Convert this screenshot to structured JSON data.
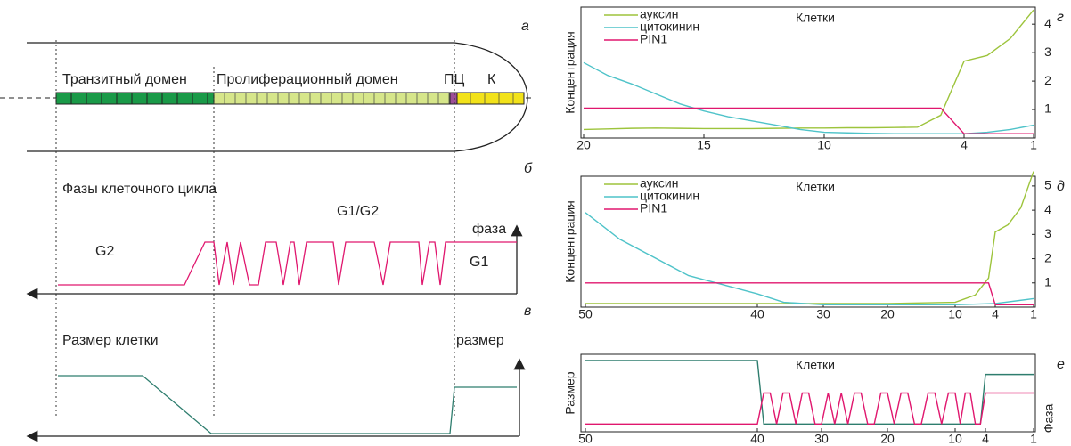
{
  "diagram": {
    "panel_a": "а",
    "transit": "Транзитный домен",
    "prolif": "Пролиферационный домен",
    "pc": "ПЦ",
    "k": "К",
    "panel_b": "б",
    "phases": "Фазы клеточного цикла",
    "g1g2": "G1/G2",
    "phase_axis": "фаза",
    "g2": "G2",
    "g1": "G1",
    "panel_v": "в",
    "cell_size": "Размер клетки",
    "size_axis": "размер"
  },
  "chart_data": [
    {
      "type": "line",
      "panel_label": "г",
      "title": "Клетки",
      "y_label": "Концентрация",
      "xlim": [
        20,
        1
      ],
      "xticks": [
        20,
        15,
        10,
        4,
        1
      ],
      "ylim": [
        0,
        4.6
      ],
      "yticks": [
        1,
        2,
        3,
        4
      ],
      "series": [
        {
          "name": "ауксин",
          "color": "#9dc43c",
          "x": [
            20,
            19,
            18,
            17,
            16,
            15,
            14,
            13,
            12,
            11,
            10,
            9,
            8,
            7,
            6,
            5,
            4,
            3,
            2,
            1
          ],
          "values": [
            0.3,
            0.32,
            0.34,
            0.35,
            0.34,
            0.33,
            0.33,
            0.33,
            0.34,
            0.35,
            0.35,
            0.36,
            0.36,
            0.37,
            0.38,
            0.8,
            2.7,
            2.9,
            3.5,
            4.5
          ]
        },
        {
          "name": "цитокинин",
          "color": "#4fc3c9",
          "x": [
            20,
            19,
            18,
            17,
            16,
            15,
            14,
            13,
            12,
            11,
            10,
            9,
            8,
            7,
            6,
            5,
            4,
            3,
            2,
            1
          ],
          "values": [
            2.65,
            2.2,
            1.9,
            1.55,
            1.2,
            0.95,
            0.75,
            0.6,
            0.45,
            0.3,
            0.2,
            0.18,
            0.16,
            0.15,
            0.15,
            0.15,
            0.15,
            0.2,
            0.3,
            0.45
          ]
        },
        {
          "name": "PIN1",
          "color": "#e0176e",
          "x": [
            20,
            5,
            4,
            1
          ],
          "values": [
            1.05,
            1.05,
            0.15,
            0.15
          ]
        }
      ]
    },
    {
      "type": "line",
      "panel_label": "д",
      "title": "Клетки",
      "y_label": "Концентрация",
      "xlim": [
        50,
        1
      ],
      "xticks": [
        50,
        40,
        30,
        20,
        10,
        4,
        1
      ],
      "ylim": [
        0,
        5.4
      ],
      "yticks": [
        1,
        2,
        3,
        4,
        5
      ],
      "series": [
        {
          "name": "ауксин",
          "color": "#9dc43c",
          "x": [
            50,
            40,
            30,
            20,
            10,
            7,
            5,
            4,
            3,
            2,
            1
          ],
          "values": [
            0.15,
            0.15,
            0.15,
            0.15,
            0.2,
            0.5,
            1.2,
            3.1,
            3.4,
            4.1,
            5.6
          ]
        },
        {
          "name": "цитокинин",
          "color": "#4fc3c9",
          "x": [
            50,
            48,
            44,
            40,
            36,
            30,
            20,
            10,
            4,
            1
          ],
          "values": [
            3.9,
            2.8,
            1.3,
            0.55,
            0.2,
            0.1,
            0.1,
            0.1,
            0.15,
            0.35
          ]
        },
        {
          "name": "PIN1",
          "color": "#e0176e",
          "x": [
            50,
            5,
            4,
            1
          ],
          "values": [
            1,
            1,
            0.1,
            0.1
          ]
        }
      ]
    },
    {
      "type": "line",
      "panel_label": "е",
      "title": "Клетки",
      "y_label": "Размер",
      "y2_label": "Фаза",
      "xlim": [
        50,
        1
      ],
      "xticks": [
        50,
        40,
        30,
        20,
        10,
        4,
        1
      ],
      "ylim": [
        0,
        1
      ],
      "series": [
        {
          "color": "#2e7d6e",
          "x": [
            50,
            40,
            39,
            5,
            4,
            1
          ],
          "values": [
            0.92,
            0.92,
            0.1,
            0.1,
            0.74,
            0.74
          ]
        },
        {
          "color": "#e0176e",
          "x": [
            50,
            40,
            39,
            38,
            37,
            36,
            35,
            34,
            33,
            32,
            31,
            30,
            29,
            28,
            27,
            26,
            25,
            24,
            23,
            22,
            21,
            20,
            19,
            18,
            17,
            16,
            15,
            14,
            13,
            12,
            11,
            10,
            9,
            8,
            7,
            6,
            5,
            4,
            1
          ],
          "values": [
            0.1,
            0.1,
            0.5,
            0.5,
            0.1,
            0.5,
            0.5,
            0.1,
            0.5,
            0.5,
            0.1,
            0.1,
            0.5,
            0.1,
            0.5,
            0.1,
            0.5,
            0.5,
            0.1,
            0.1,
            0.5,
            0.5,
            0.1,
            0.5,
            0.5,
            0.1,
            0.1,
            0.5,
            0.5,
            0.1,
            0.5,
            0.5,
            0.1,
            0.5,
            0.5,
            0.1,
            0.1,
            0.5,
            0.5
          ]
        }
      ]
    }
  ]
}
